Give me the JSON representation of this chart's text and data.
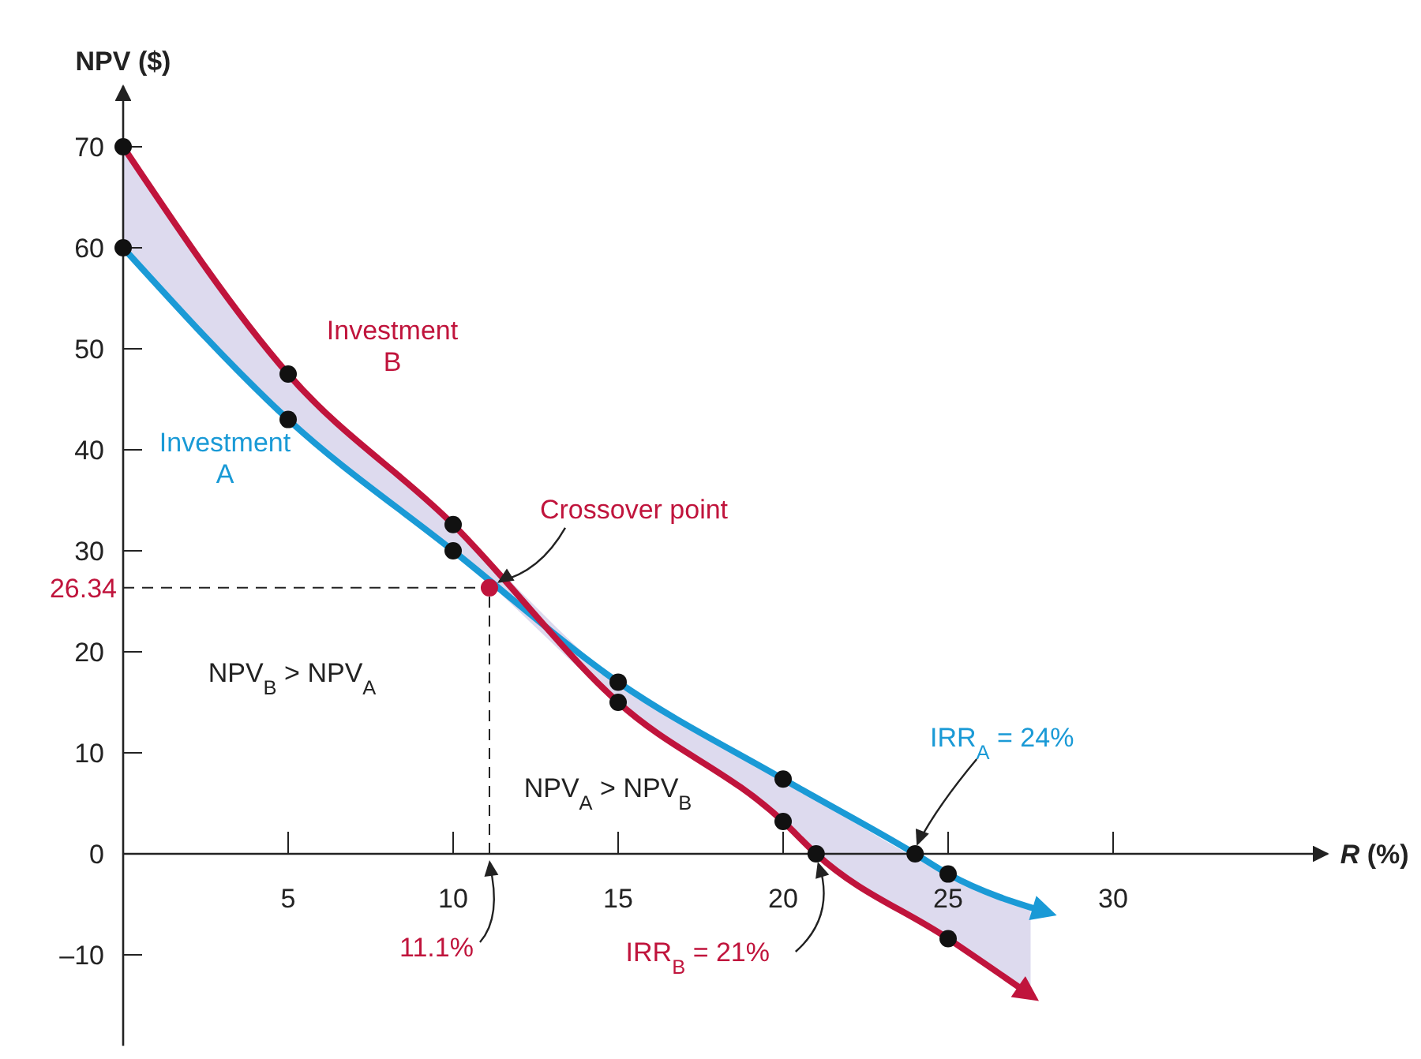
{
  "chart_data": {
    "type": "line",
    "xlabel": "R (%)",
    "ylabel": "NPV ($)",
    "xlim": [
      0,
      36.5
    ],
    "ylim": [
      -19,
      76
    ],
    "xticks": [
      5,
      10,
      15,
      20,
      25,
      30
    ],
    "yticks": [
      {
        "value": -10,
        "label": "–10"
      },
      0,
      10,
      20,
      30,
      40,
      50,
      60,
      70
    ],
    "grid": false,
    "marker": "circle",
    "line_style": "solid",
    "series": [
      {
        "name": "Investment A",
        "color": "#1a9ad6",
        "x": [
          0,
          5,
          10,
          15,
          20,
          24,
          25,
          28
        ],
        "values": [
          60,
          43,
          30,
          17,
          7.4,
          0,
          -2,
          -5.8
        ]
      },
      {
        "name": "Investment B",
        "color": "#c0143c",
        "x": [
          0,
          5,
          10,
          15,
          20,
          21,
          25,
          27.5
        ],
        "values": [
          70,
          47.5,
          32.6,
          15,
          3.2,
          0,
          -8.4,
          -14
        ],
        "lower": [
          60,
          43,
          30,
          15,
          3.2,
          0,
          -8.4,
          -14
        ],
        "upper": [
          70,
          47.5,
          32.6,
          17,
          7.4,
          5.4,
          -2,
          -5.2
        ]
      },
      {
        "type": "scatter",
        "color": "#c0143c",
        "x": [
          11.1
        ],
        "values": [
          26.34
        ]
      }
    ],
    "ref_lines": [
      {
        "axis": "y",
        "value": 26.34,
        "label": "26.34",
        "color": "#222222",
        "line_style": "dashed"
      },
      {
        "axis": "x",
        "value": 11.1,
        "label": "11.1%",
        "color": "#222222",
        "line_style": "dashed"
      }
    ],
    "annotations": [
      {
        "text": "Crossover point",
        "x": 11.1,
        "y": 26.34
      },
      "NPV$_{B}$ > NPV$_{A}$",
      "NPV$_{A}$ > NPV$_{B}$",
      {
        "text": "IRR$_{A}$ = 24%",
        "x": 24,
        "y": 0
      },
      {
        "text": "IRR$_{B}$ = 21%",
        "x": 21,
        "y": 0
      }
    ]
  }
}
